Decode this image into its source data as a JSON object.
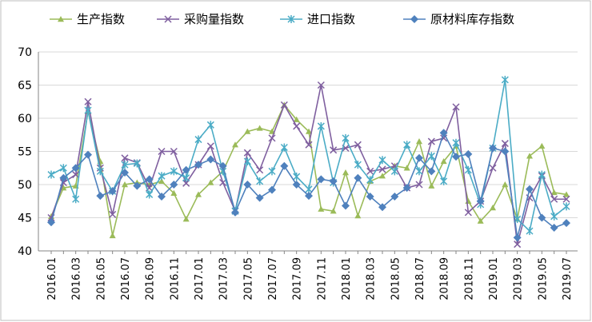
{
  "chart_data": {
    "type": "line",
    "categories": [
      "2016.01",
      null,
      "2016.03",
      null,
      "2016.05",
      null,
      "2016.07",
      null,
      "2016.09",
      null,
      "2016.11",
      null,
      "2017.01",
      null,
      "2017.03",
      null,
      "2017.05",
      null,
      "2017.07",
      null,
      "2017.09",
      null,
      "2017.11",
      null,
      "2018.01",
      null,
      "2018.03",
      null,
      "2018.05",
      null,
      "2018.07",
      null,
      "2018.09",
      null,
      "2018.11",
      null,
      "2019.01",
      null,
      "2019.03",
      null,
      "2019.05",
      null,
      "2019.07"
    ],
    "series": [
      {
        "name": "生产指数",
        "color": "#9bbb59",
        "marker": "triangle",
        "values": [
          45.2,
          49.5,
          49.8,
          61.0,
          53.5,
          42.3,
          50.0,
          50.3,
          50.0,
          50.5,
          48.7,
          44.8,
          48.5,
          50.3,
          52.0,
          56.0,
          58.0,
          58.5,
          58.0,
          62.0,
          59.8,
          58.0,
          46.3,
          46.0,
          51.8,
          45.3,
          50.5,
          51.3,
          52.8,
          52.5,
          56.5,
          49.8,
          53.5,
          55.8,
          47.5,
          44.5,
          46.5,
          50.0,
          44.8,
          54.3,
          55.8,
          48.8,
          48.5
        ]
      },
      {
        "name": "采购量指数",
        "color": "#7f5f9f",
        "marker": "x",
        "values": [
          45.0,
          50.3,
          51.5,
          62.5,
          52.5,
          45.5,
          54.0,
          53.3,
          49.5,
          55.0,
          55.0,
          50.2,
          53.0,
          55.8,
          50.3,
          46.0,
          54.8,
          52.2,
          57.0,
          62.0,
          58.8,
          56.0,
          65.0,
          55.2,
          55.5,
          56.0,
          52.0,
          52.3,
          52.8,
          49.5,
          50.0,
          56.5,
          57.0,
          61.7,
          45.8,
          47.5,
          52.5,
          56.2,
          41.0,
          48.0,
          51.3,
          47.8,
          47.8
        ]
      },
      {
        "name": "进口指数",
        "color": "#4bacc6",
        "marker": "star",
        "values": [
          51.5,
          52.5,
          47.8,
          61.2,
          52.0,
          49.0,
          53.0,
          53.2,
          48.5,
          51.3,
          52.0,
          51.0,
          56.8,
          59.0,
          52.0,
          46.0,
          53.5,
          50.5,
          52.0,
          55.6,
          51.2,
          49.3,
          58.8,
          50.3,
          57.0,
          53.0,
          50.7,
          53.7,
          52.0,
          56.0,
          52.0,
          54.3,
          50.5,
          56.3,
          52.2,
          47.0,
          55.5,
          65.8,
          44.8,
          43.0,
          51.5,
          45.2,
          46.7
        ]
      },
      {
        "name": "原材料库存指数",
        "color": "#4f81bd",
        "marker": "diamond",
        "values": [
          44.3,
          51.0,
          52.5,
          54.5,
          48.3,
          49.0,
          51.8,
          49.8,
          50.8,
          48.2,
          50.0,
          52.2,
          53.0,
          53.8,
          52.8,
          45.8,
          50.0,
          48.0,
          49.2,
          52.8,
          50.0,
          48.3,
          50.8,
          50.5,
          46.8,
          51.0,
          48.2,
          46.6,
          48.2,
          49.5,
          54.0,
          52.0,
          57.8,
          54.2,
          54.6,
          47.5,
          55.5,
          55.0,
          42.0,
          49.3,
          45.0,
          43.5,
          44.2
        ]
      }
    ],
    "ylim": [
      40,
      70
    ],
    "yticks": [
      40,
      45,
      50,
      55,
      60,
      65,
      70
    ],
    "grid": true,
    "legend": "top"
  }
}
